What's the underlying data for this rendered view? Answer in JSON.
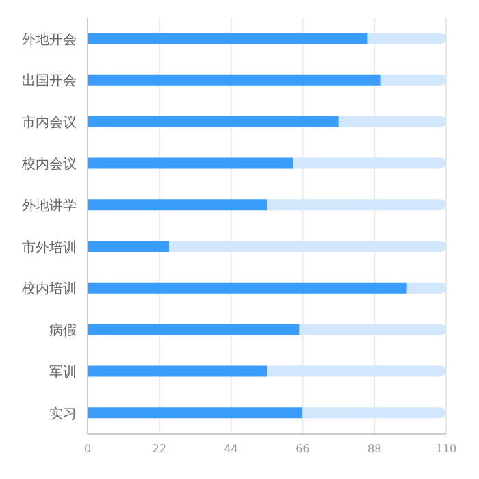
{
  "chart_data": {
    "type": "bar",
    "orientation": "horizontal",
    "stacked": true,
    "categories": [
      "外地开会",
      "出国开会",
      "市内会议",
      "校内会议",
      "外地讲学",
      "市外培训",
      "校内培训",
      "病假",
      "军训",
      "实习"
    ],
    "series": [
      {
        "color": "#3a9cfb",
        "values": [
          86,
          90,
          77,
          63,
          55,
          25,
          98,
          65,
          55,
          66
        ]
      },
      {
        "color": "#d2e7fc",
        "values": [
          24,
          20,
          33,
          47,
          55,
          85,
          12,
          45,
          55,
          44
        ]
      }
    ],
    "xlim": [
      0,
      110
    ],
    "xticks": [
      0,
      22,
      44,
      66,
      88,
      110
    ],
    "grid": "x",
    "legend": false
  }
}
